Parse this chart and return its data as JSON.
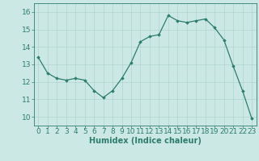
{
  "x": [
    0,
    1,
    2,
    3,
    4,
    5,
    6,
    7,
    8,
    9,
    10,
    11,
    12,
    13,
    14,
    15,
    16,
    17,
    18,
    19,
    20,
    21,
    22,
    23
  ],
  "y": [
    13.4,
    12.5,
    12.2,
    12.1,
    12.2,
    12.1,
    11.5,
    11.1,
    11.5,
    12.2,
    13.1,
    14.3,
    14.6,
    14.7,
    15.8,
    15.5,
    15.4,
    15.5,
    15.6,
    15.1,
    14.4,
    12.9,
    11.5,
    9.9
  ],
  "xlabel": "Humidex (Indice chaleur)",
  "ylim": [
    9.5,
    16.5
  ],
  "xlim": [
    -0.5,
    23.5
  ],
  "yticks": [
    10,
    11,
    12,
    13,
    14,
    15,
    16
  ],
  "xticks": [
    0,
    1,
    2,
    3,
    4,
    5,
    6,
    7,
    8,
    9,
    10,
    11,
    12,
    13,
    14,
    15,
    16,
    17,
    18,
    19,
    20,
    21,
    22,
    23
  ],
  "line_color": "#2d7d6e",
  "marker_color": "#2d7d6e",
  "bg_color": "#cce8e4",
  "grid_color": "#aed4ce",
  "axis_color": "#2d7d6e",
  "label_color": "#2d7d6e",
  "tick_color": "#2d7d6e",
  "xlabel_fontsize": 7,
  "tick_fontsize": 6.5
}
